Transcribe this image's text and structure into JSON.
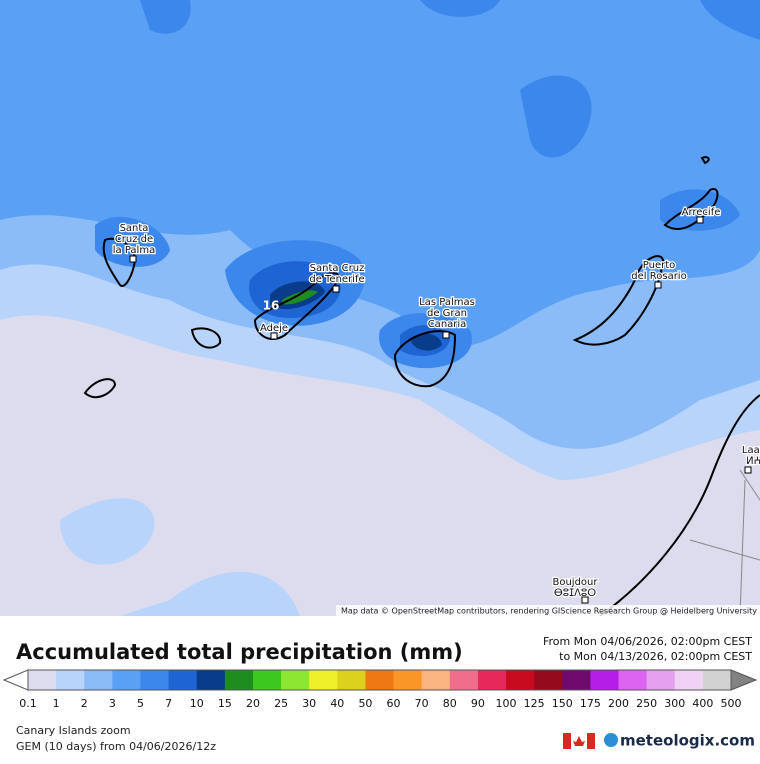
{
  "map": {
    "places": [
      {
        "lines": [
          "Santa",
          "Cruz de",
          "la Palma"
        ]
      },
      {
        "lines": [
          "Santa Cruz",
          "de Tenerife"
        ]
      },
      {
        "lines": [
          "Adeje"
        ]
      },
      {
        "lines": [
          "Las Palmas",
          "de Gran",
          "Canaria"
        ]
      },
      {
        "lines": [
          "Puerto",
          "del Rosario"
        ]
      },
      {
        "lines": [
          "Arrecife"
        ]
      },
      {
        "lines": [
          "Laayou",
          "ⵍⵄⵢⵓ"
        ]
      },
      {
        "lines": [
          "Boujdour",
          "ⴱⵓⵊⴷⵓⵔ"
        ]
      }
    ],
    "max_marker": "16",
    "attribution": "Map data © OpenStreetMap contributors, rendering GIScience Research Group @ Heidelberg University"
  },
  "legend": {
    "title": "Accumulated total precipitation (mm)",
    "from": "From Mon 04/06/2026, 02:00pm CEST",
    "to": "to Mon 04/13/2026, 02:00pm CEST",
    "labels": [
      0.1,
      1,
      2,
      3,
      5,
      7,
      10,
      15,
      20,
      25,
      30,
      40,
      50,
      60,
      70,
      80,
      90,
      100,
      125,
      150,
      175,
      200,
      250,
      300,
      400,
      500
    ],
    "colors": [
      "#dcdcee",
      "#b8d4fb",
      "#8cbcf8",
      "#5aa0f4",
      "#3c87ec",
      "#1e64d2",
      "#0a3c8c",
      "#1e8c1e",
      "#3cc81e",
      "#8ce632",
      "#f0f02a",
      "#dcd21e",
      "#f07814",
      "#fa9628",
      "#fab482",
      "#f06e8c",
      "#e6285a",
      "#c80a1e",
      "#960a1e",
      "#6e0a6e",
      "#b41ee6",
      "#dc64f0",
      "#e6a0f0",
      "#f0d2f5",
      "#d2d2d2"
    ],
    "under_color": "#ffffff",
    "over_color": "#828282"
  },
  "footer": {
    "region": "Canary Islands zoom",
    "model": "GEM (10 days) from 04/06/2026/12z",
    "brand": "meteologix.com"
  }
}
